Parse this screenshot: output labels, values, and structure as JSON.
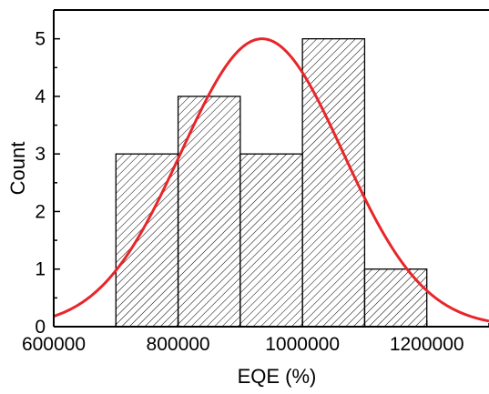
{
  "chart_data": {
    "type": "bar",
    "title": "",
    "xlabel": "EQE (%)",
    "ylabel": "Count",
    "xlim": [
      600000,
      1300000
    ],
    "ylim": [
      0,
      5.5
    ],
    "x_ticks": [
      600000,
      800000,
      1000000,
      1200000
    ],
    "x_tick_labels": [
      "600000",
      "800000",
      "1000000",
      "1200000"
    ],
    "y_ticks": [
      0,
      1,
      2,
      3,
      4,
      5
    ],
    "y_tick_labels": [
      "0",
      "1",
      "2",
      "3",
      "4",
      "5"
    ],
    "bins": [
      {
        "x_start": 700000,
        "x_end": 800000,
        "count": 3
      },
      {
        "x_start": 800000,
        "x_end": 900000,
        "count": 4
      },
      {
        "x_start": 900000,
        "x_end": 1000000,
        "count": 3
      },
      {
        "x_start": 1000000,
        "x_end": 1100000,
        "count": 5
      },
      {
        "x_start": 1100000,
        "x_end": 1200000,
        "count": 1
      }
    ],
    "bar_fill": "diagonal hatch",
    "fit_curve": {
      "type": "normal",
      "peak_x": 935000,
      "peak_y": 5.0,
      "sigma": 130000,
      "color": "#e8262a"
    },
    "grid": false,
    "legend": "none"
  }
}
